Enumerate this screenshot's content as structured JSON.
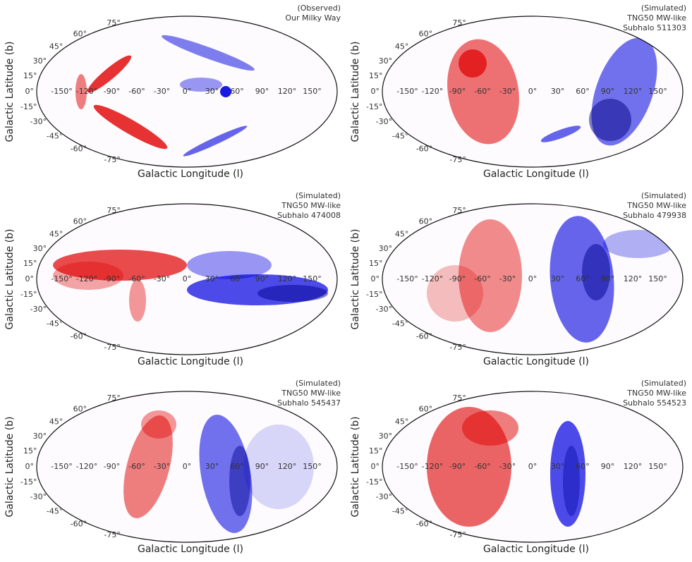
{
  "panels": [
    {
      "annotation": [
        "(Observed)",
        "Our Milky Way"
      ]
    },
    {
      "annotation": [
        "(Simulated)",
        "TNG50 MW-like",
        "Subhalo 511303"
      ]
    },
    {
      "annotation": [
        "(Simulated)",
        "TNG50 MW-like",
        "Subhalo 474008"
      ]
    },
    {
      "annotation": [
        "(Simulated)",
        "TNG50 MW-like",
        "Subhalo 479938"
      ]
    },
    {
      "annotation": [
        "(Simulated)",
        "TNG50 MW-like",
        "Subhalo 545437"
      ]
    },
    {
      "annotation": [
        "(Simulated)",
        "TNG50 MW-like",
        "Subhalo 554523"
      ]
    }
  ],
  "x_label": "Galactic Longitude (l)",
  "y_label": "Galactic Latitude (b)",
  "longitude_ticks": [
    {
      "value": -150,
      "label": "-150°"
    },
    {
      "value": -120,
      "label": "-120°"
    },
    {
      "value": -90,
      "label": "-90°"
    },
    {
      "value": -60,
      "label": "-60°"
    },
    {
      "value": -30,
      "label": "-30°"
    },
    {
      "value": 0,
      "label": "0°"
    },
    {
      "value": 30,
      "label": "30°"
    },
    {
      "value": 60,
      "label": "60°"
    },
    {
      "value": 90,
      "label": "90°"
    },
    {
      "value": 120,
      "label": "120°"
    },
    {
      "value": 150,
      "label": "150°"
    }
  ],
  "latitude_ticks": [
    {
      "value": 75,
      "label": "75°"
    },
    {
      "value": 60,
      "label": "60°"
    },
    {
      "value": 45,
      "label": "45°"
    },
    {
      "value": 30,
      "label": "30°"
    },
    {
      "value": 15,
      "label": "15°"
    },
    {
      "value": 0,
      "label": "0°"
    },
    {
      "value": -15,
      "label": "-15°"
    },
    {
      "value": -30,
      "label": "-30°"
    },
    {
      "value": -45,
      "label": "-45°"
    },
    {
      "value": -60,
      "label": "-60°"
    },
    {
      "value": -75,
      "label": "-75°"
    }
  ]
}
